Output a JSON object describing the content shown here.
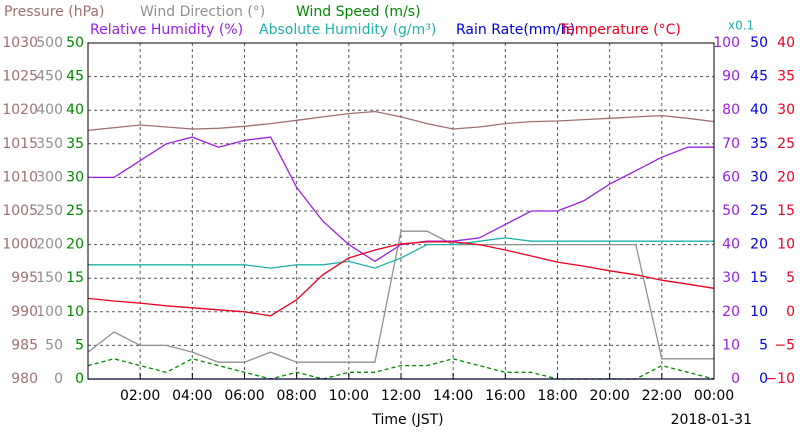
{
  "chart_data": {
    "type": "line",
    "x_label": "Time (JST)",
    "date": "2018-01-31",
    "scale_label": "x0.1",
    "xlim": [
      0,
      24
    ],
    "xticks": [
      {
        "value": 2,
        "label": "02:00"
      },
      {
        "value": 4,
        "label": "04:00"
      },
      {
        "value": 6,
        "label": "06:00"
      },
      {
        "value": 8,
        "label": "08:00"
      },
      {
        "value": 10,
        "label": "10:00"
      },
      {
        "value": 12,
        "label": "12:00"
      },
      {
        "value": 14,
        "label": "14:00"
      },
      {
        "value": 16,
        "label": "16:00"
      },
      {
        "value": 18,
        "label": "18:00"
      },
      {
        "value": 20,
        "label": "20:00"
      },
      {
        "value": 22,
        "label": "22:00"
      },
      {
        "value": 24,
        "label": "00:00"
      }
    ],
    "grid": true,
    "axes": [
      {
        "side": "left",
        "color": "#a07070",
        "ylim": [
          980,
          1030
        ],
        "yticks": [
          980,
          985,
          990,
          995,
          1000,
          1005,
          1010,
          1015,
          1020,
          1025,
          1030
        ]
      },
      {
        "side": "left",
        "color": "#909090",
        "ylim": [
          0,
          500
        ],
        "yticks": [
          0,
          50,
          100,
          150,
          200,
          250,
          300,
          350,
          400,
          450,
          500
        ]
      },
      {
        "side": "left",
        "color": "#008800",
        "ylim": [
          0,
          50
        ],
        "yticks": [
          0,
          5,
          10,
          15,
          20,
          25,
          30,
          35,
          40,
          45,
          50
        ]
      },
      {
        "side": "right",
        "color": "#9a20e0",
        "ylim": [
          0,
          100
        ],
        "yticks": [
          0,
          10,
          20,
          30,
          40,
          50,
          60,
          70,
          80,
          90,
          100
        ]
      },
      {
        "side": "right",
        "color": "#0000dd",
        "ylim": [
          0,
          50
        ],
        "yticks": [
          0,
          5,
          10,
          15,
          20,
          25,
          30,
          35,
          40,
          45,
          50
        ]
      },
      {
        "side": "right",
        "color": "#ee0022",
        "ylim": [
          -10,
          40
        ],
        "yticks": [
          {
            "value": -10,
            "label": "−10"
          },
          {
            "value": -5,
            "label": "−5"
          },
          0,
          5,
          10,
          15,
          20,
          25,
          30,
          35,
          40
        ]
      }
    ],
    "x": [
      0,
      1,
      2,
      3,
      4,
      5,
      6,
      7,
      8,
      9,
      10,
      11,
      12,
      13,
      14,
      15,
      16,
      17,
      18,
      19,
      20,
      21,
      22,
      23,
      24
    ],
    "series": [
      {
        "name": "Pressure (hPa)",
        "color": "#a07070",
        "axis": 0,
        "values": [
          1017.0,
          1017.4,
          1017.8,
          1017.5,
          1017.2,
          1017.3,
          1017.6,
          1018.0,
          1018.5,
          1019.0,
          1019.5,
          1019.8,
          1019.0,
          1018.0,
          1017.2,
          1017.5,
          1018.0,
          1018.3,
          1018.4,
          1018.6,
          1018.8,
          1019.0,
          1019.2,
          1018.8,
          1018.3
        ]
      },
      {
        "name": "Wind Direction (°)",
        "color": "#909090",
        "axis": 1,
        "values": [
          40,
          70,
          50,
          50,
          40,
          25,
          25,
          40,
          25,
          25,
          25,
          25,
          220,
          220,
          200,
          200,
          200,
          200,
          200,
          200,
          200,
          200,
          30,
          30,
          30
        ]
      },
      {
        "name": "Wind Speed (m/s)",
        "color": "#008800",
        "axis": 2,
        "dashed": true,
        "values": [
          2,
          3,
          2,
          1,
          3,
          2,
          1,
          0,
          1,
          0,
          1,
          1,
          2,
          2,
          3,
          2,
          1,
          1,
          0,
          0,
          0,
          0,
          2,
          1,
          0
        ]
      },
      {
        "name": "Relative Humidity (%)",
        "color": "#9a20e0",
        "axis": 3,
        "values": [
          60,
          60,
          65,
          70,
          72,
          69,
          71,
          72,
          57,
          47,
          40,
          35,
          40,
          41,
          41,
          42,
          46,
          50,
          50,
          53,
          58,
          62,
          66,
          69,
          69
        ]
      },
      {
        "name": "Absolute Humidity (g/m³)",
        "color": "#20b2aa",
        "ylim": [
          0,
          10
        ],
        "values": [
          3.4,
          3.4,
          3.4,
          3.4,
          3.4,
          3.4,
          3.4,
          3.3,
          3.4,
          3.4,
          3.5,
          3.3,
          3.6,
          4.0,
          4.0,
          4.1,
          4.2,
          4.1,
          4.1,
          4.1,
          4.1,
          4.1,
          4.1,
          4.1,
          4.1
        ]
      },
      {
        "name": "Rain Rate(mm/h)",
        "color": "#0000dd",
        "axis": 4,
        "values": [
          0,
          0,
          0,
          0,
          0,
          0,
          0,
          0,
          0,
          0,
          0,
          0,
          0,
          0,
          0,
          0,
          0,
          0,
          0,
          0,
          0,
          0,
          0,
          0,
          0
        ]
      },
      {
        "name": "Temperature (°C)",
        "color": "#ee0022",
        "axis": 5,
        "values": [
          2.0,
          1.6,
          1.3,
          0.9,
          0.6,
          0.3,
          0,
          -0.6,
          1.8,
          5.5,
          8.0,
          9.2,
          10.1,
          10.4,
          10.4,
          10.0,
          9.2,
          8.3,
          7.4,
          6.8,
          6.1,
          5.5,
          4.7,
          4.1,
          3.5
        ]
      }
    ]
  }
}
